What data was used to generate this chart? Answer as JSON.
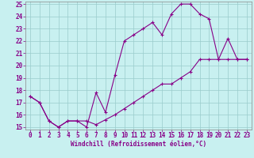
{
  "xlabel": "Windchill (Refroidissement éolien,°C)",
  "bg_color": "#c8f0f0",
  "line_color": "#880088",
  "grid_color": "#99cccc",
  "spine_color": "#888888",
  "xlim": [
    -0.5,
    23.5
  ],
  "ylim": [
    14.8,
    25.2
  ],
  "xticks": [
    0,
    1,
    2,
    3,
    4,
    5,
    6,
    7,
    8,
    9,
    10,
    11,
    12,
    13,
    14,
    15,
    16,
    17,
    18,
    19,
    20,
    21,
    22,
    23
  ],
  "yticks": [
    15,
    16,
    17,
    18,
    19,
    20,
    21,
    22,
    23,
    24,
    25
  ],
  "line1_x": [
    0,
    1,
    2,
    3,
    4,
    5,
    6,
    7,
    8,
    9,
    10,
    11,
    12,
    13,
    14,
    15,
    16,
    17,
    18,
    19,
    20,
    21,
    22,
    23
  ],
  "line1_y": [
    17.5,
    17.0,
    15.5,
    15.0,
    15.5,
    15.5,
    15.0,
    17.8,
    16.2,
    19.2,
    22.0,
    22.5,
    23.0,
    23.5,
    22.5,
    24.2,
    25.0,
    25.0,
    24.2,
    23.8,
    20.5,
    22.2,
    20.5,
    20.5
  ],
  "line2_x": [
    0,
    1,
    2,
    3,
    4,
    5,
    6,
    7,
    8,
    9,
    10,
    11,
    12,
    13,
    14,
    15,
    16,
    17,
    18,
    19,
    20,
    21,
    22,
    23
  ],
  "line2_y": [
    17.5,
    17.0,
    15.5,
    15.0,
    15.5,
    15.5,
    15.5,
    15.2,
    15.6,
    16.0,
    16.5,
    17.0,
    17.5,
    18.0,
    18.5,
    18.5,
    19.0,
    19.5,
    20.5,
    20.5,
    20.5,
    20.5,
    20.5,
    20.5
  ],
  "tick_fontsize": 5.5,
  "xlabel_fontsize": 5.5
}
